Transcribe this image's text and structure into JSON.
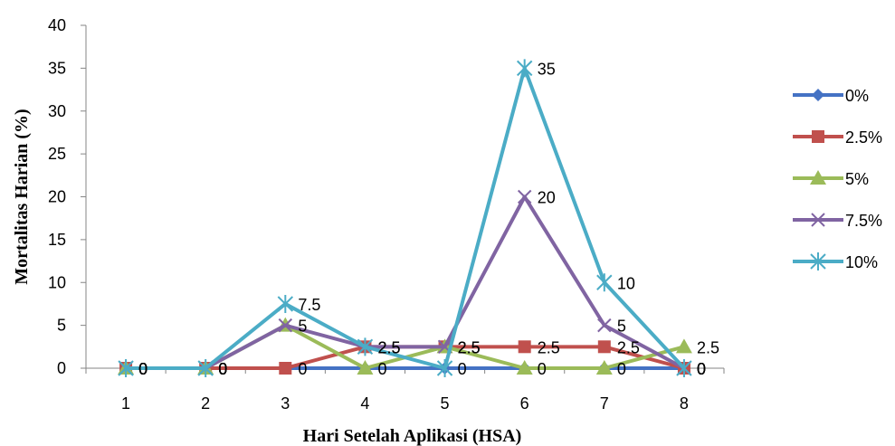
{
  "chart_data": {
    "type": "line",
    "title": "",
    "xlabel": "Hari Setelah Aplikasi (HSA)",
    "ylabel": "Mortalitas Harian (%)",
    "categories": [
      "1",
      "2",
      "3",
      "4",
      "5",
      "6",
      "7",
      "8"
    ],
    "ylim": [
      0,
      40
    ],
    "yticks": [
      "0",
      "5",
      "10",
      "15",
      "20",
      "25",
      "30",
      "35",
      "40"
    ],
    "grid": false,
    "legend_position": "right",
    "series": [
      {
        "name": "0%",
        "color": "#4472C4",
        "marker": "diamond",
        "values": [
          0,
          0,
          0,
          0,
          0,
          0,
          0,
          0
        ],
        "labels": [
          "0",
          "0",
          "",
          "",
          "",
          "",
          "",
          "0"
        ]
      },
      {
        "name": "2.5%",
        "color": "#C0504D",
        "marker": "square",
        "values": [
          0,
          0,
          0,
          2.5,
          2.5,
          2.5,
          2.5,
          0
        ],
        "labels": [
          "0",
          "0",
          "0",
          "2.5",
          "2.5",
          "2.5",
          "2.5",
          "0"
        ]
      },
      {
        "name": "5%",
        "color": "#9BBB59",
        "marker": "triangle",
        "values": [
          0,
          0,
          5,
          0,
          2.5,
          0,
          0,
          2.5
        ],
        "labels": [
          "0",
          "0",
          "",
          "0",
          "",
          "0",
          "0",
          "2.5"
        ]
      },
      {
        "name": "7.5%",
        "color": "#8064A2",
        "marker": "x",
        "values": [
          0,
          0,
          5,
          2.5,
          2.5,
          20,
          5,
          0
        ],
        "labels": [
          "0",
          "0",
          "5",
          "2.5",
          "2.5",
          "20",
          "5",
          "0"
        ]
      },
      {
        "name": "10%",
        "color": "#4BACC6",
        "marker": "star",
        "values": [
          0,
          0,
          7.5,
          2.5,
          0,
          35,
          10,
          0
        ],
        "labels": [
          "0",
          "0",
          "7.5",
          "",
          "0",
          "35",
          "10",
          "0"
        ]
      }
    ]
  }
}
